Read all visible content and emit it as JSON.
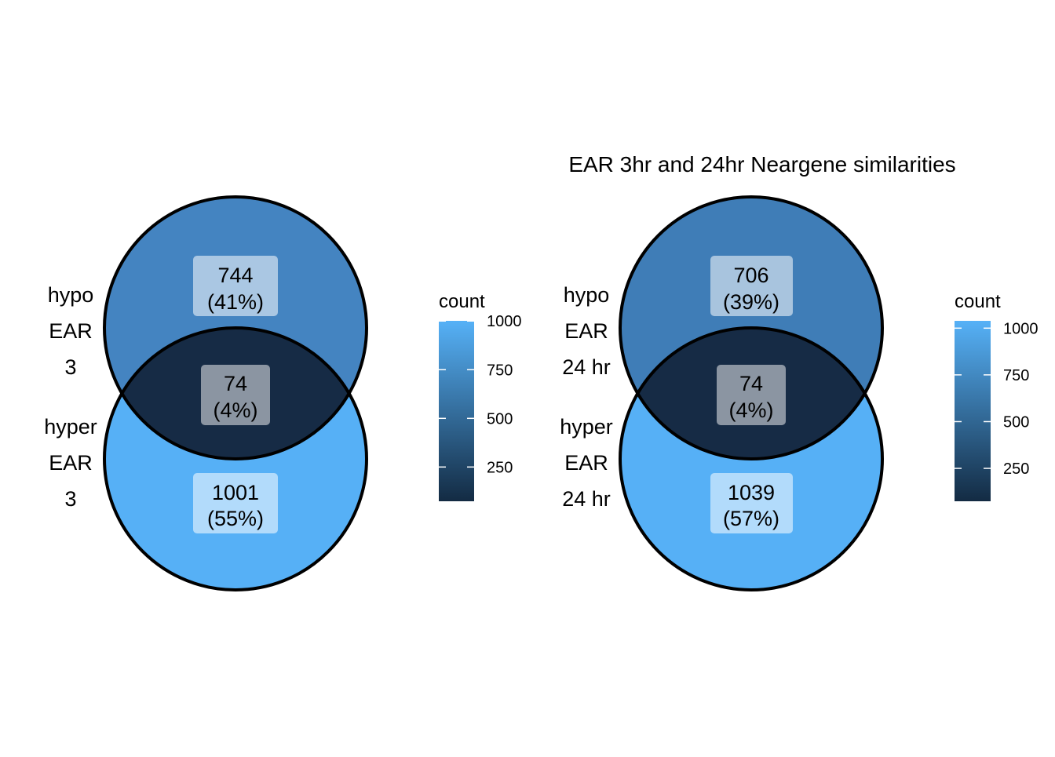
{
  "chart_data": [
    {
      "type": "venn",
      "title": "",
      "sets": [
        {
          "label_lines": [
            "hypo",
            "EAR",
            "3"
          ]
        },
        {
          "label_lines": [
            "hyper",
            "EAR",
            "3"
          ]
        }
      ],
      "regions": [
        {
          "id": "only_top",
          "count": "744",
          "percent": "(41%)",
          "count_value": 744,
          "fill": "#4484C1"
        },
        {
          "id": "overlap",
          "count": "74",
          "percent": "(4%)",
          "count_value": 74,
          "fill": "#162B45"
        },
        {
          "id": "only_bottom",
          "count": "1001",
          "percent": "(55%)",
          "count_value": 1001,
          "fill": "#56B0F6"
        }
      ],
      "legend": {
        "title": "count",
        "min": 74,
        "max": 1001,
        "ticks": [
          {
            "value": 250,
            "label": "250"
          },
          {
            "value": 500,
            "label": "500"
          },
          {
            "value": 750,
            "label": "750"
          },
          {
            "value": 1000,
            "label": "1000"
          }
        ],
        "colors": [
          "#132B43",
          "#56B1F7"
        ]
      }
    },
    {
      "type": "venn",
      "title": "EAR 3hr and 24hr Neargene similarities",
      "sets": [
        {
          "label_lines": [
            "hypo",
            "EAR",
            "24 hr"
          ]
        },
        {
          "label_lines": [
            "hyper",
            "EAR",
            "24 hr"
          ]
        }
      ],
      "regions": [
        {
          "id": "only_top",
          "count": "706",
          "percent": "(39%)",
          "count_value": 706,
          "fill": "#3F7DB7"
        },
        {
          "id": "overlap",
          "count": "74",
          "percent": "(4%)",
          "count_value": 74,
          "fill": "#162B45"
        },
        {
          "id": "only_bottom",
          "count": "1039",
          "percent": "(57%)",
          "count_value": 1039,
          "fill": "#56B0F6"
        }
      ],
      "legend": {
        "title": "count",
        "min": 74,
        "max": 1039,
        "ticks": [
          {
            "value": 250,
            "label": "250"
          },
          {
            "value": 500,
            "label": "500"
          },
          {
            "value": 750,
            "label": "750"
          },
          {
            "value": 1000,
            "label": "1000"
          }
        ],
        "colors": [
          "#132B43",
          "#56B1F7"
        ]
      }
    }
  ]
}
